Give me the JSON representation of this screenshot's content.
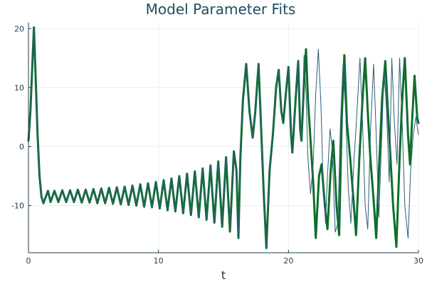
{
  "chart_data": {
    "type": "line",
    "title": "Model Parameter Fits",
    "xlabel": "t",
    "ylabel": "",
    "xlim": [
      0,
      30
    ],
    "ylim": [
      -18,
      21
    ],
    "xticks": [
      0,
      10,
      20,
      30
    ],
    "yticks": [
      -10,
      0,
      10,
      20
    ],
    "grid": true,
    "legend": "none",
    "series": [
      {
        "color": "#0d6e2a",
        "style": "thick",
        "points": [
          [
            0.0,
            1.0
          ],
          [
            0.15,
            6.0
          ],
          [
            0.3,
            14.0
          ],
          [
            0.42,
            20.2
          ],
          [
            0.55,
            12.0
          ],
          [
            0.7,
            2.0
          ],
          [
            0.85,
            -5.0
          ],
          [
            1.0,
            -8.5
          ],
          [
            1.15,
            -9.6
          ],
          [
            1.3,
            -8.7
          ],
          [
            1.5,
            -7.5
          ],
          [
            1.7,
            -9.4
          ],
          [
            2.0,
            -7.5
          ],
          [
            2.3,
            -9.4
          ],
          [
            2.6,
            -7.4
          ],
          [
            2.9,
            -9.4
          ],
          [
            3.2,
            -7.4
          ],
          [
            3.5,
            -9.4
          ],
          [
            3.8,
            -7.3
          ],
          [
            4.1,
            -9.5
          ],
          [
            4.4,
            -7.3
          ],
          [
            4.7,
            -9.5
          ],
          [
            5.0,
            -7.2
          ],
          [
            5.3,
            -9.6
          ],
          [
            5.6,
            -7.1
          ],
          [
            5.9,
            -9.6
          ],
          [
            6.2,
            -7.0
          ],
          [
            6.5,
            -9.7
          ],
          [
            6.8,
            -6.9
          ],
          [
            7.1,
            -9.8
          ],
          [
            7.4,
            -6.8
          ],
          [
            7.7,
            -9.9
          ],
          [
            8.0,
            -6.6
          ],
          [
            8.3,
            -10.0
          ],
          [
            8.6,
            -6.4
          ],
          [
            8.9,
            -10.2
          ],
          [
            9.2,
            -6.2
          ],
          [
            9.5,
            -10.3
          ],
          [
            9.8,
            -6.0
          ],
          [
            10.1,
            -10.5
          ],
          [
            10.4,
            -5.7
          ],
          [
            10.7,
            -10.8
          ],
          [
            11.0,
            -5.4
          ],
          [
            11.3,
            -11.0
          ],
          [
            11.6,
            -5.0
          ],
          [
            11.9,
            -11.3
          ],
          [
            12.2,
            -4.6
          ],
          [
            12.5,
            -11.6
          ],
          [
            12.8,
            -4.2
          ],
          [
            13.1,
            -12.0
          ],
          [
            13.4,
            -3.7
          ],
          [
            13.7,
            -12.4
          ],
          [
            14.0,
            -3.2
          ],
          [
            14.3,
            -12.9
          ],
          [
            14.6,
            -2.5
          ],
          [
            14.9,
            -13.6
          ],
          [
            15.2,
            -1.8
          ],
          [
            15.5,
            -14.4
          ],
          [
            15.8,
            -0.8
          ],
          [
            16.0,
            -4.0
          ],
          [
            16.15,
            -15.5
          ],
          [
            16.3,
            -2.0
          ],
          [
            16.5,
            8.0
          ],
          [
            16.75,
            14.0
          ],
          [
            17.0,
            6.0
          ],
          [
            17.25,
            1.5
          ],
          [
            17.45,
            6.0
          ],
          [
            17.7,
            14.0
          ],
          [
            17.9,
            3.0
          ],
          [
            18.1,
            -8.0
          ],
          [
            18.3,
            -17.2
          ],
          [
            18.55,
            -4.0
          ],
          [
            18.8,
            2.0
          ],
          [
            19.05,
            10.0
          ],
          [
            19.25,
            13.0
          ],
          [
            19.45,
            6.0
          ],
          [
            19.6,
            4.0
          ],
          [
            19.8,
            9.0
          ],
          [
            20.0,
            13.5
          ],
          [
            20.2,
            2.0
          ],
          [
            20.3,
            -1.0
          ],
          [
            20.55,
            8.0
          ],
          [
            20.75,
            14.5
          ],
          [
            20.9,
            3.0
          ],
          [
            21.0,
            1.0
          ],
          [
            21.2,
            11.0
          ],
          [
            21.35,
            16.5
          ],
          [
            21.5,
            8.0
          ],
          [
            21.7,
            1.0
          ],
          [
            21.9,
            -6.0
          ],
          [
            22.1,
            -15.5
          ],
          [
            22.35,
            -5.0
          ],
          [
            22.55,
            -3.0
          ],
          [
            22.8,
            -10.0
          ],
          [
            23.0,
            -14.0
          ],
          [
            23.25,
            -4.0
          ],
          [
            23.45,
            1.0
          ],
          [
            23.7,
            -10.0
          ],
          [
            23.9,
            -15.0
          ],
          [
            24.1,
            5.0
          ],
          [
            24.3,
            15.5
          ],
          [
            24.5,
            4.0
          ],
          [
            24.75,
            -2.0
          ],
          [
            25.0,
            -9.0
          ],
          [
            25.2,
            -15.0
          ],
          [
            25.45,
            -2.0
          ],
          [
            25.7,
            8.0
          ],
          [
            25.9,
            15.0
          ],
          [
            26.1,
            6.0
          ],
          [
            26.3,
            -2.0
          ],
          [
            26.55,
            -9.0
          ],
          [
            26.75,
            -15.5
          ],
          [
            27.0,
            -2.0
          ],
          [
            27.2,
            8.0
          ],
          [
            27.45,
            14.5
          ],
          [
            27.7,
            4.0
          ],
          [
            27.85,
            -2.0
          ],
          [
            28.05,
            -10.0
          ],
          [
            28.3,
            -17.0
          ],
          [
            28.55,
            -2.0
          ],
          [
            28.75,
            8.0
          ],
          [
            28.95,
            15.0
          ],
          [
            29.2,
            2.0
          ],
          [
            29.35,
            -3.0
          ],
          [
            29.5,
            4.0
          ],
          [
            29.7,
            12.0
          ],
          [
            29.9,
            5.0
          ],
          [
            30.0,
            4.0
          ]
        ]
      },
      {
        "color": "#2b5d7a",
        "style": "thin",
        "points": [
          [
            0.0,
            1.0
          ],
          [
            0.15,
            6.0
          ],
          [
            0.3,
            14.0
          ],
          [
            0.42,
            20.2
          ],
          [
            0.55,
            12.0
          ],
          [
            0.7,
            2.0
          ],
          [
            0.85,
            -5.0
          ],
          [
            1.0,
            -8.5
          ],
          [
            1.15,
            -9.6
          ],
          [
            1.3,
            -8.7
          ],
          [
            1.5,
            -7.5
          ],
          [
            1.7,
            -9.4
          ],
          [
            2.0,
            -7.5
          ],
          [
            2.3,
            -9.4
          ],
          [
            2.6,
            -7.4
          ],
          [
            2.9,
            -9.4
          ],
          [
            3.2,
            -7.4
          ],
          [
            3.5,
            -9.4
          ],
          [
            3.8,
            -7.3
          ],
          [
            4.1,
            -9.5
          ],
          [
            4.4,
            -7.3
          ],
          [
            4.7,
            -9.5
          ],
          [
            5.0,
            -7.2
          ],
          [
            5.3,
            -9.6
          ],
          [
            5.6,
            -7.1
          ],
          [
            5.9,
            -9.6
          ],
          [
            6.2,
            -7.0
          ],
          [
            6.5,
            -9.7
          ],
          [
            6.8,
            -6.9
          ],
          [
            7.1,
            -9.8
          ],
          [
            7.4,
            -6.8
          ],
          [
            7.7,
            -9.9
          ],
          [
            8.0,
            -6.6
          ],
          [
            8.3,
            -10.0
          ],
          [
            8.6,
            -6.4
          ],
          [
            8.9,
            -10.2
          ],
          [
            9.2,
            -6.2
          ],
          [
            9.5,
            -10.3
          ],
          [
            9.8,
            -6.0
          ],
          [
            10.1,
            -10.5
          ],
          [
            10.4,
            -5.7
          ],
          [
            10.7,
            -10.8
          ],
          [
            11.0,
            -5.4
          ],
          [
            11.3,
            -11.0
          ],
          [
            11.6,
            -5.0
          ],
          [
            11.9,
            -11.3
          ],
          [
            12.2,
            -4.6
          ],
          [
            12.5,
            -11.6
          ],
          [
            12.8,
            -4.2
          ],
          [
            13.1,
            -12.0
          ],
          [
            13.4,
            -3.7
          ],
          [
            13.7,
            -12.4
          ],
          [
            14.0,
            -3.2
          ],
          [
            14.3,
            -12.9
          ],
          [
            14.6,
            -2.5
          ],
          [
            14.9,
            -13.6
          ],
          [
            15.2,
            -1.8
          ],
          [
            15.5,
            -14.4
          ],
          [
            15.8,
            -0.8
          ],
          [
            16.0,
            -4.0
          ],
          [
            16.15,
            -15.5
          ],
          [
            16.3,
            -2.0
          ],
          [
            16.5,
            8.0
          ],
          [
            16.75,
            14.0
          ],
          [
            17.0,
            6.0
          ],
          [
            17.25,
            1.5
          ],
          [
            17.45,
            6.0
          ],
          [
            17.7,
            14.0
          ],
          [
            17.9,
            3.0
          ],
          [
            18.1,
            -8.0
          ],
          [
            18.3,
            -17.2
          ],
          [
            18.55,
            -4.0
          ],
          [
            18.8,
            2.0
          ],
          [
            19.05,
            10.0
          ],
          [
            19.25,
            13.0
          ],
          [
            19.45,
            6.0
          ],
          [
            19.6,
            4.0
          ],
          [
            19.8,
            9.0
          ],
          [
            20.0,
            13.5
          ],
          [
            20.2,
            2.0
          ],
          [
            20.3,
            -1.0
          ],
          [
            20.55,
            8.0
          ],
          [
            20.75,
            14.5
          ],
          [
            20.9,
            3.0
          ],
          [
            21.0,
            1.0
          ],
          [
            21.2,
            15.5
          ],
          [
            21.35,
            9.0
          ],
          [
            21.5,
            -2.0
          ],
          [
            21.7,
            -8.0
          ],
          [
            21.9,
            -3.0
          ],
          [
            22.1,
            9.0
          ],
          [
            22.3,
            16.5
          ],
          [
            22.5,
            7.0
          ],
          [
            22.65,
            -5.0
          ],
          [
            22.85,
            -13.0
          ],
          [
            23.0,
            -5.0
          ],
          [
            23.2,
            3.0
          ],
          [
            23.35,
            0.0
          ],
          [
            23.6,
            -14.5
          ],
          [
            23.8,
            -13.0
          ],
          [
            24.0,
            4.0
          ],
          [
            24.2,
            14.0
          ],
          [
            24.4,
            6.0
          ],
          [
            24.6,
            -7.0
          ],
          [
            24.8,
            -13.0
          ],
          [
            25.05,
            -2.0
          ],
          [
            25.3,
            7.0
          ],
          [
            25.5,
            15.0
          ],
          [
            25.7,
            4.0
          ],
          [
            25.9,
            -10.0
          ],
          [
            26.1,
            -14.0
          ],
          [
            26.3,
            2.0
          ],
          [
            26.55,
            14.0
          ],
          [
            26.75,
            2.0
          ],
          [
            26.95,
            -12.0
          ],
          [
            27.15,
            0.0
          ],
          [
            27.35,
            13.0
          ],
          [
            27.55,
            6.0
          ],
          [
            27.75,
            -6.0
          ],
          [
            27.95,
            15.0
          ],
          [
            28.15,
            4.0
          ],
          [
            28.35,
            -3.0
          ],
          [
            28.55,
            15.0
          ],
          [
            28.75,
            4.0
          ],
          [
            28.95,
            -10.0
          ],
          [
            29.2,
            -15.5
          ],
          [
            29.4,
            -4.0
          ],
          [
            29.6,
            2.0
          ],
          [
            29.8,
            5.0
          ],
          [
            30.0,
            2.0
          ]
        ]
      }
    ]
  }
}
